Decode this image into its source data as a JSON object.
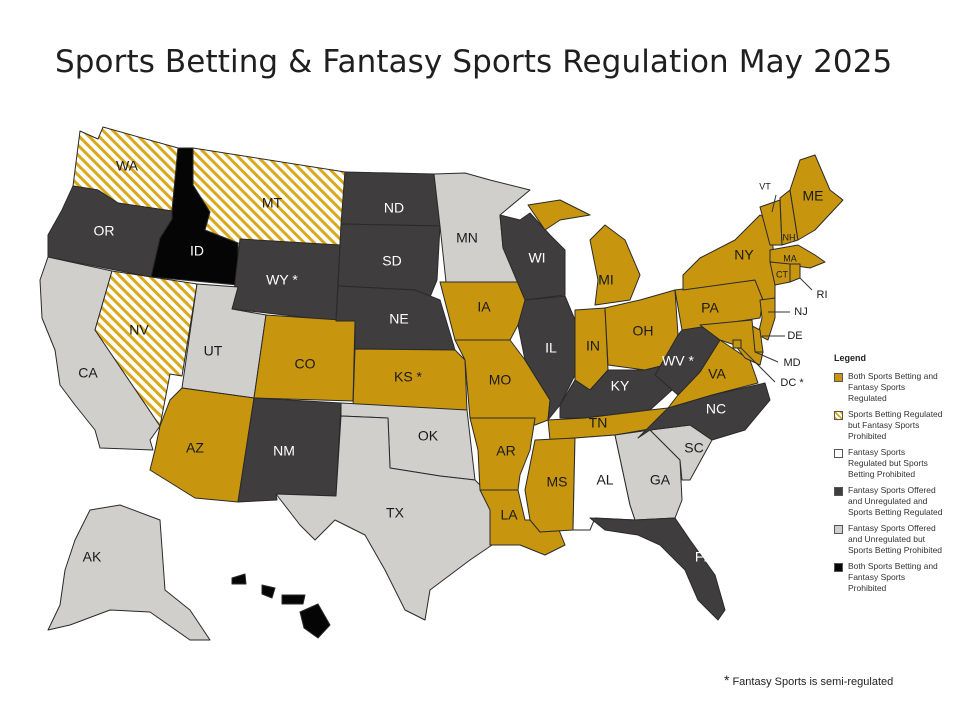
{
  "title": "Sports Betting & Fantasy Sports Regulation May 2025",
  "colors": {
    "both_regulated": "#c8960e",
    "betting_only_stripe": "#d9a91a",
    "fantasy_only": "#ffffff",
    "fantasy_unregulated_betting_regulated": "#3f3d3e",
    "fantasy_unregulated_betting_prohibited": "#d0cfcb",
    "both_prohibited": "#050505"
  },
  "legend": {
    "title": "Legend",
    "items": [
      {
        "key": "both_regulated",
        "label": "Both Sports Betting and Fantasy Sports Regulated"
      },
      {
        "key": "betting_only",
        "label": "Sports Betting Regulated but Fantasy Sports Prohibited"
      },
      {
        "key": "fantasy_only",
        "label": "Fantasy Sports Regulated but Sports Betting Prohibited"
      },
      {
        "key": "fantasy_unregulated_betting_regulated",
        "label": "Fantasy Sports Offered and Unregulated and Sports Betting Regulated"
      },
      {
        "key": "fantasy_unregulated_betting_prohibited",
        "label": "Fantasy Sports Offered and Unregulated but Sports Betting Prohibited"
      },
      {
        "key": "both_prohibited",
        "label": "Both Sports Betting and Fantasy Sports Prohibited"
      }
    ]
  },
  "footnote": {
    "star": "*",
    "text": "Fantasy Sports is semi-regulated"
  },
  "states": [
    {
      "abbr": "WA",
      "category": "betting_only"
    },
    {
      "abbr": "OR",
      "category": "fantasy_unregulated_betting_regulated"
    },
    {
      "abbr": "CA",
      "category": "fantasy_unregulated_betting_prohibited"
    },
    {
      "abbr": "ID",
      "category": "both_prohibited"
    },
    {
      "abbr": "NV",
      "category": "betting_only"
    },
    {
      "abbr": "MT",
      "category": "betting_only"
    },
    {
      "abbr": "WY",
      "category": "fantasy_unregulated_betting_regulated",
      "star": true
    },
    {
      "abbr": "UT",
      "category": "fantasy_unregulated_betting_prohibited"
    },
    {
      "abbr": "AZ",
      "category": "both_regulated"
    },
    {
      "abbr": "CO",
      "category": "both_regulated"
    },
    {
      "abbr": "NM",
      "category": "fantasy_unregulated_betting_regulated"
    },
    {
      "abbr": "ND",
      "category": "fantasy_unregulated_betting_regulated"
    },
    {
      "abbr": "SD",
      "category": "fantasy_unregulated_betting_regulated"
    },
    {
      "abbr": "NE",
      "category": "fantasy_unregulated_betting_regulated"
    },
    {
      "abbr": "KS",
      "category": "both_regulated",
      "star": true
    },
    {
      "abbr": "OK",
      "category": "fantasy_unregulated_betting_prohibited"
    },
    {
      "abbr": "TX",
      "category": "fantasy_unregulated_betting_prohibited"
    },
    {
      "abbr": "MN",
      "category": "fantasy_unregulated_betting_prohibited"
    },
    {
      "abbr": "IA",
      "category": "both_regulated"
    },
    {
      "abbr": "MO",
      "category": "both_regulated"
    },
    {
      "abbr": "AR",
      "category": "both_regulated"
    },
    {
      "abbr": "LA",
      "category": "both_regulated"
    },
    {
      "abbr": "WI",
      "category": "fantasy_unregulated_betting_regulated"
    },
    {
      "abbr": "IL",
      "category": "fantasy_unregulated_betting_regulated"
    },
    {
      "abbr": "MI",
      "category": "both_regulated"
    },
    {
      "abbr": "IN",
      "category": "both_regulated"
    },
    {
      "abbr": "OH",
      "category": "both_regulated"
    },
    {
      "abbr": "KY",
      "category": "fantasy_unregulated_betting_regulated"
    },
    {
      "abbr": "TN",
      "category": "both_regulated"
    },
    {
      "abbr": "MS",
      "category": "both_regulated"
    },
    {
      "abbr": "AL",
      "category": "fantasy_only"
    },
    {
      "abbr": "GA",
      "category": "fantasy_unregulated_betting_prohibited"
    },
    {
      "abbr": "FL",
      "category": "fantasy_unregulated_betting_regulated"
    },
    {
      "abbr": "SC",
      "category": "fantasy_unregulated_betting_prohibited"
    },
    {
      "abbr": "NC",
      "category": "fantasy_unregulated_betting_regulated"
    },
    {
      "abbr": "VA",
      "category": "both_regulated"
    },
    {
      "abbr": "WV",
      "category": "fantasy_unregulated_betting_regulated",
      "star": true
    },
    {
      "abbr": "PA",
      "category": "both_regulated"
    },
    {
      "abbr": "NY",
      "category": "both_regulated"
    },
    {
      "abbr": "VT",
      "category": "both_regulated"
    },
    {
      "abbr": "NH",
      "category": "both_regulated"
    },
    {
      "abbr": "ME",
      "category": "both_regulated"
    },
    {
      "abbr": "MA",
      "category": "both_regulated"
    },
    {
      "abbr": "RI",
      "category": "both_regulated"
    },
    {
      "abbr": "CT",
      "category": "both_regulated"
    },
    {
      "abbr": "NJ",
      "category": "both_regulated"
    },
    {
      "abbr": "DE",
      "category": "both_regulated"
    },
    {
      "abbr": "MD",
      "category": "both_regulated"
    },
    {
      "abbr": "DC",
      "category": "both_regulated",
      "star": true
    },
    {
      "abbr": "AK",
      "category": "fantasy_unregulated_betting_prohibited"
    },
    {
      "abbr": "HI",
      "category": "both_prohibited"
    }
  ]
}
